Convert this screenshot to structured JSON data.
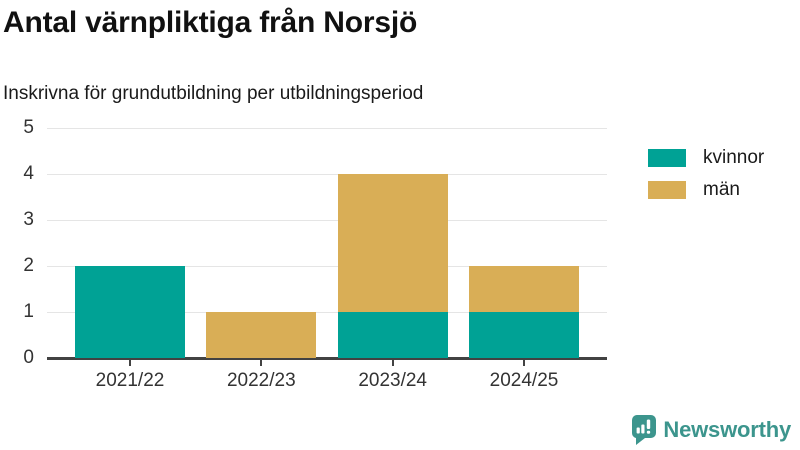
{
  "header": {
    "title": "Antal värnpliktiga från Norsjö",
    "subtitle": "Inskrivna för grundutbildning per utbildningsperiod"
  },
  "chart_data": {
    "type": "bar",
    "stacked": true,
    "title": "Antal värnpliktiga från Norsjö",
    "subtitle": "Inskrivna för grundutbildning per utbildningsperiod",
    "categories": [
      "2021/22",
      "2022/23",
      "2023/24",
      "2024/25"
    ],
    "series": [
      {
        "name": "kvinnor",
        "color": "#00a295",
        "values": [
          2,
          0,
          1,
          1
        ]
      },
      {
        "name": "män",
        "color": "#d9ae56",
        "values": [
          0,
          1,
          3,
          1
        ]
      }
    ],
    "totals": [
      2,
      1,
      4,
      2
    ],
    "xlabel": "",
    "ylabel": "",
    "ylim": [
      0,
      5
    ],
    "yticks": [
      0,
      1,
      2,
      3,
      4,
      5
    ],
    "grid": true,
    "legend_position": "right"
  },
  "footer": {
    "brand": "Newsworthy",
    "brand_color": "#3c958d"
  }
}
